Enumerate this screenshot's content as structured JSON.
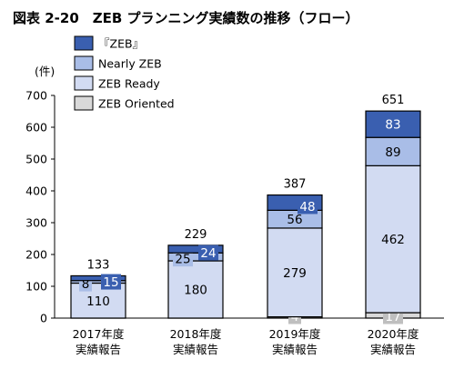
{
  "chart_data": {
    "type": "bar",
    "stacked": true,
    "title": "図表 2-20　ZEB プランニング実績数の推移（フロー）",
    "yunit": "(件)",
    "ylim": [
      0,
      700
    ],
    "yticks": [
      0,
      100,
      200,
      300,
      400,
      500,
      600,
      700
    ],
    "grid": false,
    "legend_position": "top-left",
    "categories": [
      [
        "2017年度",
        "実績報告"
      ],
      [
        "2018年度",
        "実績報告"
      ],
      [
        "2019年度",
        "実績報告"
      ],
      [
        "2020年度",
        "実績報告"
      ]
    ],
    "series": [
      {
        "name": "ZEB Oriented",
        "values": [
          0,
          0,
          4,
          17
        ],
        "color": "#d9d9d9",
        "label_color": "#ffffff"
      },
      {
        "name": "ZEB Ready",
        "values": [
          110,
          180,
          279,
          462
        ],
        "color": "#d2dbf2",
        "label_color": "#000000"
      },
      {
        "name": "Nearly ZEB",
        "values": [
          8,
          25,
          56,
          89
        ],
        "color": "#a9bde7",
        "label_color": "#000000"
      },
      {
        "name": "『ZEB』",
        "values": [
          15,
          24,
          48,
          83
        ],
        "color": "#3a5fb0",
        "label_color": "#ffffff"
      }
    ],
    "segment_labels": [
      [
        "",
        "110",
        "8",
        "15"
      ],
      [
        "",
        "180",
        "25",
        "24"
      ],
      [
        "4",
        "279",
        "56",
        "48"
      ],
      [
        "17",
        "462",
        "89",
        "83"
      ]
    ],
    "totals": [
      133,
      229,
      387,
      651
    ]
  }
}
